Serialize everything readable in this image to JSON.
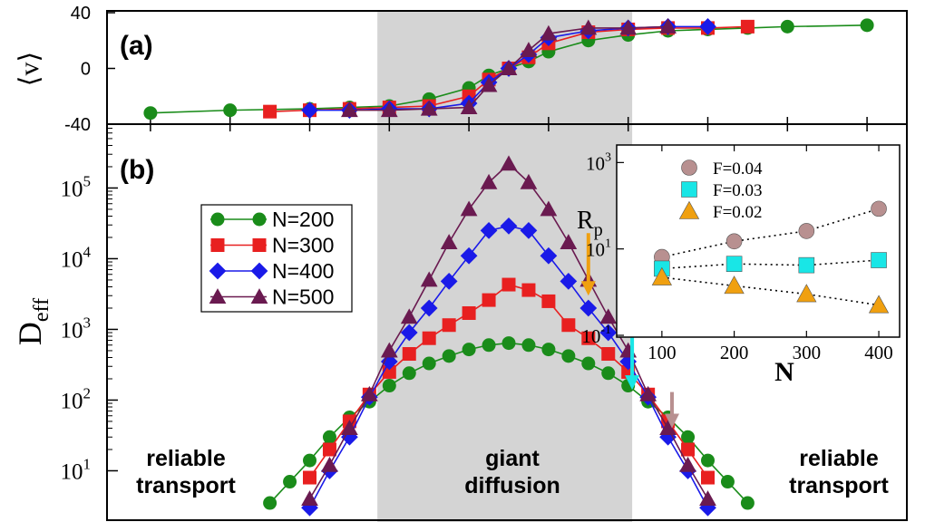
{
  "chart_data": [
    {
      "panel_label": "(a)",
      "type": "line",
      "ylabel": "⟨v⟩",
      "ylim": [
        -40,
        40
      ],
      "yticks": [
        "40",
        "0",
        "-40"
      ],
      "xlim": [
        -1,
        1
      ],
      "grid": false,
      "band": {
        "x": [
          -0.33,
          0.31
        ],
        "color": "#d4d4d4"
      },
      "series": [
        {
          "name": "N=200",
          "color": "#1a8c1a",
          "marker": "circle",
          "x": [
            -0.9,
            -0.7,
            -0.5,
            -0.4,
            -0.3,
            -0.2,
            -0.1,
            -0.05,
            0.0,
            0.05,
            0.1,
            0.2,
            0.3,
            0.4,
            0.5,
            0.6,
            0.7,
            0.9
          ],
          "y": [
            -32,
            -30,
            -29,
            -28,
            -27,
            -22,
            -14,
            -5,
            0,
            5,
            12,
            20,
            24,
            27,
            28,
            29,
            30,
            31
          ]
        },
        {
          "name": "N=300",
          "color": "#e82020",
          "marker": "square",
          "x": [
            -0.6,
            -0.5,
            -0.4,
            -0.3,
            -0.2,
            -0.1,
            -0.05,
            0.0,
            0.05,
            0.1,
            0.2,
            0.3,
            0.4,
            0.5,
            0.6
          ],
          "y": [
            -31,
            -30,
            -29,
            -28,
            -27,
            -20,
            -8,
            0,
            8,
            18,
            26,
            28,
            29,
            29,
            30
          ]
        },
        {
          "name": "N=400",
          "color": "#1a1ae8",
          "marker": "diamond",
          "x": [
            -0.5,
            -0.4,
            -0.3,
            -0.2,
            -0.1,
            -0.05,
            0.0,
            0.05,
            0.1,
            0.2,
            0.3,
            0.4,
            0.5
          ],
          "y": [
            -30,
            -30,
            -29,
            -29,
            -25,
            -10,
            0,
            10,
            22,
            27,
            29,
            30,
            30
          ]
        },
        {
          "name": "N=500",
          "color": "#6a1a50",
          "marker": "triangle",
          "x": [
            -0.4,
            -0.3,
            -0.2,
            -0.1,
            -0.05,
            0.0,
            0.05,
            0.1,
            0.2,
            0.3,
            0.4
          ],
          "y": [
            -30,
            -30,
            -29,
            -28,
            -12,
            0,
            13,
            25,
            29,
            29,
            30
          ]
        }
      ]
    },
    {
      "panel_label": "(b)",
      "type": "line",
      "ylabel": "D",
      "ylabel_sub": "eff",
      "yscale": "log",
      "ylim": [
        2,
        800000
      ],
      "yticks": [
        {
          "base": "10",
          "exp": "1",
          "value": 10
        },
        {
          "base": "10",
          "exp": "2",
          "value": 100
        },
        {
          "base": "10",
          "exp": "3",
          "value": 1000
        },
        {
          "base": "10",
          "exp": "4",
          "value": 10000
        },
        {
          "base": "10",
          "exp": "5",
          "value": 100000
        }
      ],
      "xlim": [
        -1,
        1
      ],
      "grid": false,
      "legend_position": "upper-left",
      "annotations": [
        {
          "text": [
            "reliable",
            "transport"
          ],
          "region": "left"
        },
        {
          "text": [
            "giant",
            "diffusion"
          ],
          "region": "center"
        },
        {
          "text": [
            "reliable",
            "transport"
          ],
          "region": "right"
        }
      ],
      "arrows": [
        {
          "color": "#f0a010",
          "x": 0.2,
          "y_from": 23000,
          "y_to": 3000
        },
        {
          "color": "#19e6e6",
          "x": 0.31,
          "y_from": 1100,
          "y_to": 140
        },
        {
          "color": "#b89090",
          "x": 0.41,
          "y_from": 130,
          "y_to": 40
        }
      ],
      "series": [
        {
          "name": "N=200",
          "color": "#1a8c1a",
          "marker": "circle",
          "x": [
            -0.6,
            -0.55,
            -0.5,
            -0.45,
            -0.4,
            -0.35,
            -0.3,
            -0.25,
            -0.2,
            -0.15,
            -0.1,
            -0.05,
            0.0,
            0.05,
            0.1,
            0.15,
            0.2,
            0.25,
            0.3,
            0.35,
            0.4,
            0.45,
            0.5,
            0.55,
            0.6
          ],
          "y": [
            3.5,
            7,
            14,
            30,
            57,
            95,
            160,
            240,
            330,
            420,
            520,
            600,
            640,
            600,
            520,
            420,
            330,
            240,
            160,
            95,
            57,
            30,
            14,
            7,
            3.5
          ]
        },
        {
          "name": "N=300",
          "color": "#e82020",
          "marker": "square",
          "x": [
            -0.5,
            -0.45,
            -0.4,
            -0.35,
            -0.3,
            -0.25,
            -0.2,
            -0.15,
            -0.1,
            -0.05,
            0.0,
            0.05,
            0.1,
            0.15,
            0.2,
            0.25,
            0.3,
            0.35,
            0.4,
            0.45,
            0.5
          ],
          "y": [
            8,
            20,
            50,
            120,
            250,
            450,
            750,
            1150,
            1700,
            2600,
            4300,
            3600,
            2500,
            1150,
            750,
            450,
            250,
            120,
            50,
            20,
            8
          ]
        },
        {
          "name": "N=400",
          "color": "#1a1ae8",
          "marker": "diamond",
          "x": [
            -0.5,
            -0.45,
            -0.4,
            -0.35,
            -0.3,
            -0.25,
            -0.2,
            -0.15,
            -0.1,
            -0.05,
            0.0,
            0.05,
            0.1,
            0.15,
            0.2,
            0.25,
            0.3,
            0.35,
            0.4,
            0.45,
            0.5
          ],
          "y": [
            3,
            10,
            30,
            110,
            350,
            900,
            2000,
            4800,
            11000,
            25000,
            29000,
            25000,
            11000,
            4800,
            2000,
            900,
            350,
            110,
            30,
            10,
            3
          ]
        },
        {
          "name": "N=500",
          "color": "#6a1a50",
          "marker": "triangle",
          "x": [
            -0.5,
            -0.45,
            -0.4,
            -0.35,
            -0.3,
            -0.25,
            -0.2,
            -0.15,
            -0.1,
            -0.05,
            0.0,
            0.05,
            0.1,
            0.15,
            0.2,
            0.25,
            0.3,
            0.35,
            0.4,
            0.45,
            0.5
          ],
          "y": [
            4,
            12,
            40,
            120,
            500,
            1500,
            5000,
            17000,
            50000,
            120000,
            220000,
            120000,
            50000,
            17000,
            5000,
            1500,
            500,
            120,
            40,
            12,
            4
          ]
        }
      ]
    },
    {
      "panel_label": "inset",
      "type": "scatter",
      "ylabel": "R",
      "ylabel_sub": "p",
      "xlabel": "N",
      "yscale": "log",
      "ylim": [
        0.1,
        2000
      ],
      "xlim": [
        50,
        420
      ],
      "xticks": [
        "100",
        "200",
        "300",
        "400"
      ],
      "yticks": [
        {
          "base": "10",
          "exp": "-1",
          "value": 0.1
        },
        {
          "base": "10",
          "exp": "1",
          "value": 10
        },
        {
          "base": "10",
          "exp": "3",
          "value": 1000
        }
      ],
      "legend_position": "upper-left",
      "series": [
        {
          "name": "F=0.04",
          "color": "#b89090",
          "marker": "circle",
          "x": [
            100,
            200,
            300,
            400
          ],
          "y": [
            6.5,
            15,
            26,
            85
          ]
        },
        {
          "name": "F=0.03",
          "color": "#19e6e6",
          "marker": "square",
          "x": [
            100,
            200,
            300,
            400
          ],
          "y": [
            3.5,
            4.5,
            4.2,
            5.5
          ]
        },
        {
          "name": "F=0.02",
          "color": "#f0a010",
          "marker": "triangle",
          "x": [
            100,
            200,
            300,
            400
          ],
          "y": [
            2.2,
            1.4,
            0.9,
            0.5
          ]
        }
      ]
    }
  ]
}
